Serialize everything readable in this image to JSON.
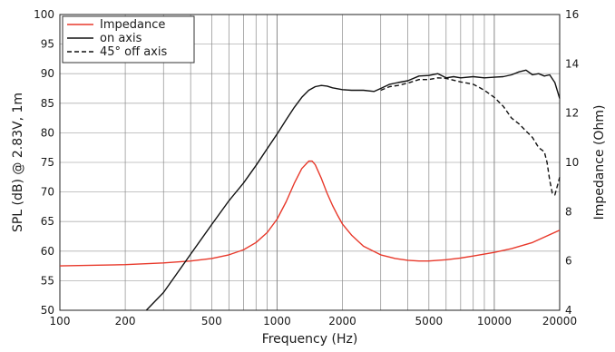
{
  "chart_data": {
    "type": "line",
    "xlabel": "Frequency (Hz)",
    "ylabel": "SPL (dB) @ 2.83V, 1m",
    "y2label": "Impedance (Ohm)",
    "x_scale": "log",
    "xlim": [
      100,
      20000
    ],
    "ylim": [
      50,
      100
    ],
    "y2lim": [
      4,
      16
    ],
    "grid": true,
    "legend_position": "top-left",
    "x_ticks": [
      100,
      200,
      500,
      1000,
      2000,
      5000,
      10000,
      20000
    ],
    "x_tick_labels": [
      "100",
      "200",
      "500",
      "1000",
      "2000",
      "5000",
      "10000",
      "20000"
    ],
    "y_ticks": [
      50,
      55,
      60,
      65,
      70,
      75,
      80,
      85,
      90,
      95,
      100
    ],
    "y_tick_labels": [
      "50",
      "55",
      "60",
      "65",
      "70",
      "75",
      "80",
      "85",
      "90",
      "95",
      "100"
    ],
    "y2_ticks": [
      4,
      6,
      8,
      10,
      12,
      14,
      16
    ],
    "y2_tick_labels": [
      "4",
      "6",
      "8",
      "10",
      "12",
      "14",
      "16"
    ],
    "series": [
      {
        "name": "Impedance",
        "axis": "right",
        "color": "#e8392b",
        "dash": "solid",
        "x": [
          100,
          200,
          300,
          400,
          500,
          600,
          700,
          800,
          900,
          1000,
          1100,
          1200,
          1300,
          1400,
          1450,
          1500,
          1600,
          1700,
          1800,
          1900,
          2000,
          2200,
          2500,
          3000,
          3500,
          4000,
          4500,
          5000,
          6000,
          7000,
          8000,
          10000,
          12000,
          15000,
          20000
        ],
        "y": [
          5.8,
          5.85,
          5.92,
          6.0,
          6.1,
          6.25,
          6.45,
          6.75,
          7.15,
          7.7,
          8.4,
          9.15,
          9.75,
          10.05,
          10.05,
          9.9,
          9.35,
          8.75,
          8.25,
          7.85,
          7.5,
          7.05,
          6.6,
          6.25,
          6.1,
          6.03,
          6.0,
          6.0,
          6.05,
          6.12,
          6.2,
          6.35,
          6.5,
          6.75,
          7.25
        ]
      },
      {
        "name": "on axis",
        "axis": "left",
        "color": "#111111",
        "dash": "solid",
        "x": [
          250,
          300,
          400,
          500,
          600,
          700,
          800,
          900,
          1000,
          1100,
          1200,
          1300,
          1400,
          1500,
          1600,
          1700,
          1800,
          2000,
          2200,
          2500,
          2800,
          3000,
          3300,
          3600,
          4000,
          4500,
          5000,
          5500,
          6000,
          6500,
          7000,
          8000,
          9000,
          10000,
          11000,
          12000,
          13000,
          14000,
          15000,
          16000,
          17000,
          18000,
          19000,
          20000
        ],
        "y": [
          50,
          53,
          59.5,
          64.5,
          68.5,
          71.5,
          74.5,
          77.3,
          79.8,
          82.2,
          84.3,
          86.0,
          87.2,
          87.8,
          88.0,
          87.9,
          87.6,
          87.3,
          87.2,
          87.2,
          87.0,
          87.5,
          88.2,
          88.5,
          88.8,
          89.6,
          89.7,
          90.0,
          89.3,
          89.5,
          89.3,
          89.5,
          89.3,
          89.4,
          89.5,
          89.8,
          90.3,
          90.6,
          89.8,
          90.0,
          89.6,
          89.8,
          88.5,
          85.8
        ]
      },
      {
        "name": "45° off axis",
        "axis": "left",
        "color": "#111111",
        "dash": "dashed",
        "x": [
          3000,
          3300,
          3600,
          4000,
          4500,
          5000,
          5500,
          6000,
          6500,
          7000,
          7500,
          8000,
          8500,
          9000,
          10000,
          11000,
          12000,
          13000,
          14000,
          15000,
          16000,
          17000,
          17500,
          18000,
          18500,
          19000,
          19500,
          20000
        ],
        "y": [
          87.2,
          87.8,
          88.0,
          88.4,
          89.0,
          89.0,
          89.3,
          89.2,
          88.9,
          88.6,
          88.4,
          88.2,
          87.7,
          87.2,
          86.0,
          84.5,
          82.5,
          81.5,
          80.3,
          79.2,
          77.5,
          76.8,
          75.0,
          72.0,
          69.8,
          69.5,
          71.0,
          72.5
        ]
      }
    ]
  }
}
